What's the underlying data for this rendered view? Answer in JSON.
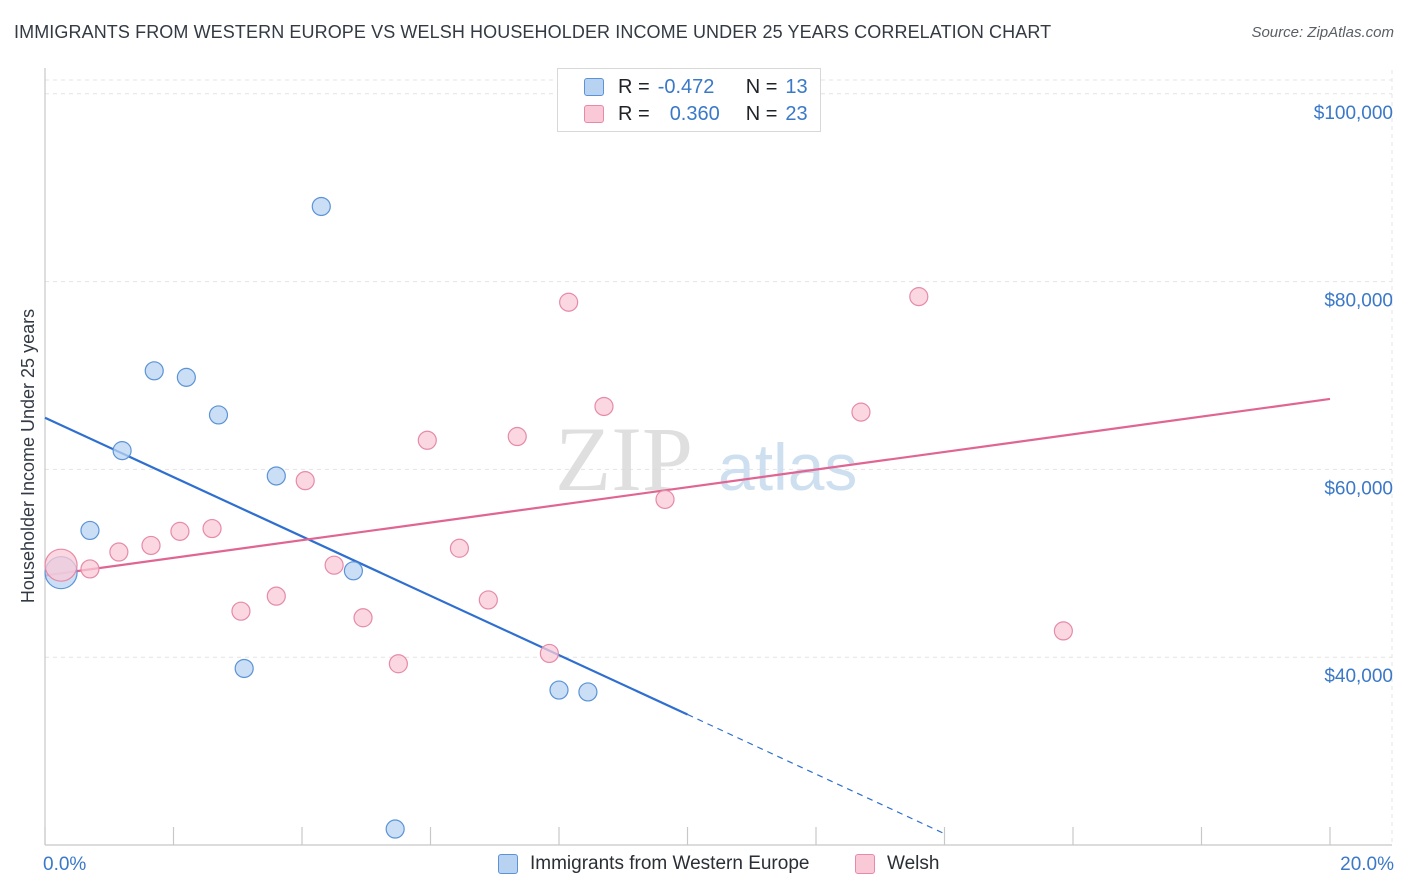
{
  "header": {
    "title": "IMMIGRANTS FROM WESTERN EUROPE VS WELSH HOUSEHOLDER INCOME UNDER 25 YEARS CORRELATION CHART",
    "source": "Source: ZipAtlas.com"
  },
  "watermark": {
    "zip": "ZIP",
    "atlas": "atlas"
  },
  "legend": {
    "series1": {
      "r_label": "R =",
      "r_value": "-0.472",
      "n_label": "N =",
      "n_value": "13"
    },
    "series2": {
      "r_label": "R =",
      "r_value": "0.360",
      "n_label": "N =",
      "n_value": "23"
    }
  },
  "colors": {
    "blue_fill": "#b8d3f2",
    "blue_stroke": "#5b93d6",
    "blue_line": "#2f6fcf",
    "pink_fill": "#f9c9d7",
    "pink_stroke": "#e68aa8",
    "pink_line": "#e06592",
    "tick_text": "#3a78c8",
    "grid": "#e4e4e4"
  },
  "chart_data": {
    "type": "scatter",
    "title": "IMMIGRANTS FROM WESTERN EUROPE VS WELSH HOUSEHOLDER INCOME UNDER 25 YEARS CORRELATION CHART",
    "xlabel": "",
    "ylabel": "Householder Income Under 25 years",
    "xlim": [
      0,
      20
    ],
    "ylim": [
      20000,
      102000
    ],
    "x_tick_labels": [
      "0.0%",
      "20.0%"
    ],
    "y_ticks": [
      {
        "value": 40000,
        "label": "$40,000"
      },
      {
        "value": 60000,
        "label": "$60,000"
      },
      {
        "value": 80000,
        "label": "$80,000"
      },
      {
        "value": 100000,
        "label": "$100,000"
      }
    ],
    "grid": true,
    "series": [
      {
        "name": "Immigrants from Western Europe",
        "color": "blue",
        "r": -0.472,
        "n": 13,
        "points": [
          {
            "x": 0.25,
            "y": 49000,
            "big": true
          },
          {
            "x": 0.7,
            "y": 53500
          },
          {
            "x": 1.2,
            "y": 62000
          },
          {
            "x": 1.7,
            "y": 70500
          },
          {
            "x": 2.2,
            "y": 69800
          },
          {
            "x": 2.7,
            "y": 65800
          },
          {
            "x": 3.1,
            "y": 38800
          },
          {
            "x": 3.6,
            "y": 59300
          },
          {
            "x": 4.3,
            "y": 88000
          },
          {
            "x": 4.8,
            "y": 49200
          },
          {
            "x": 5.45,
            "y": 21700
          },
          {
            "x": 8.0,
            "y": 36500
          },
          {
            "x": 8.45,
            "y": 36300
          }
        ],
        "trend": {
          "x0": 0,
          "y0": 65500,
          "x1": 10,
          "y1": 33900,
          "dash_to_x": 14,
          "dash_to_y": 21200
        }
      },
      {
        "name": "Welsh",
        "color": "pink",
        "r": 0.36,
        "n": 23,
        "points": [
          {
            "x": 0.25,
            "y": 49800,
            "big": true
          },
          {
            "x": 0.7,
            "y": 49400
          },
          {
            "x": 1.15,
            "y": 51200
          },
          {
            "x": 1.65,
            "y": 51900
          },
          {
            "x": 2.1,
            "y": 53400
          },
          {
            "x": 2.6,
            "y": 53700
          },
          {
            "x": 3.05,
            "y": 44900
          },
          {
            "x": 3.6,
            "y": 46500
          },
          {
            "x": 4.05,
            "y": 58800
          },
          {
            "x": 4.5,
            "y": 49800
          },
          {
            "x": 4.95,
            "y": 44200
          },
          {
            "x": 5.5,
            "y": 39300
          },
          {
            "x": 5.95,
            "y": 63100
          },
          {
            "x": 6.45,
            "y": 51600
          },
          {
            "x": 6.9,
            "y": 46100
          },
          {
            "x": 7.35,
            "y": 63500
          },
          {
            "x": 7.85,
            "y": 40400
          },
          {
            "x": 8.15,
            "y": 77800
          },
          {
            "x": 8.7,
            "y": 66700
          },
          {
            "x": 9.65,
            "y": 56800
          },
          {
            "x": 12.7,
            "y": 66100
          },
          {
            "x": 13.6,
            "y": 78400
          },
          {
            "x": 15.85,
            "y": 42800
          }
        ],
        "trend": {
          "x0": 0,
          "y0": 48700,
          "x1": 20,
          "y1": 67500
        }
      }
    ]
  },
  "bottom_legend": {
    "item1": "Immigrants from Western Europe",
    "item2": "Welsh"
  }
}
